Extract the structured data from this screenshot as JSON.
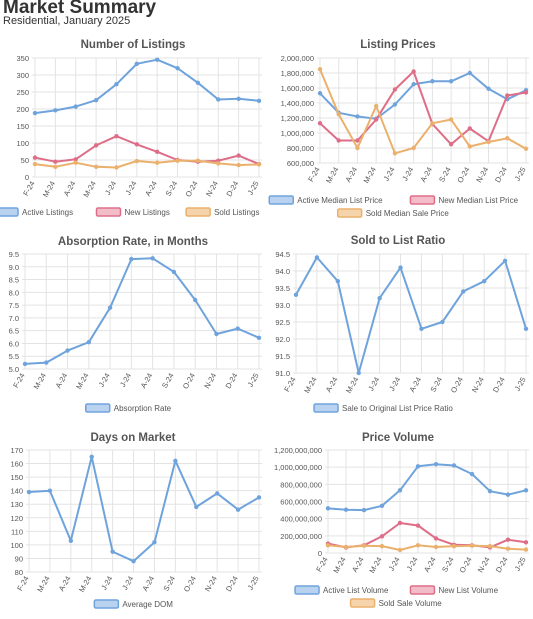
{
  "page": {
    "title": "Market Summary",
    "subtitle": "Residential, January 2025"
  },
  "colors": {
    "blue": "#6fa3dc",
    "blue_fill": "#b8d2f0",
    "pink": "#de6e88",
    "pink_fill": "#f3bcc9",
    "orange": "#ebb06c",
    "orange_fill": "#f5d4ab",
    "grid": "#e3e3e3",
    "axis_text": "#555555",
    "title_text": "#555555"
  },
  "chart_data": [
    {
      "type": "line",
      "title": "Number of Listings",
      "categories": [
        "F-24",
        "M-24",
        "A-24",
        "M-24",
        "J-24",
        "J-24",
        "A-24",
        "S-24",
        "O-24",
        "N-24",
        "D-24",
        "J-25"
      ],
      "ylim": [
        0,
        350
      ],
      "ytick_labels": [
        "0",
        "50",
        "100",
        "150",
        "200",
        "250",
        "300",
        "350"
      ],
      "grid": true,
      "legend_position": "bottom",
      "series": [
        {
          "name": "Active Listings",
          "color": "#6fa3dc",
          "fill": "#b8d2f0",
          "values": [
            188,
            196,
            207,
            226,
            273,
            333,
            345,
            320,
            277,
            228,
            230,
            224
          ]
        },
        {
          "name": "New Listings",
          "color": "#de6e88",
          "fill": "#f3bcc9",
          "values": [
            57,
            45,
            52,
            93,
            120,
            96,
            74,
            50,
            45,
            48,
            63,
            38
          ]
        },
        {
          "name": "Sold Listings",
          "color": "#ebb06c",
          "fill": "#f5d4ab",
          "values": [
            38,
            30,
            42,
            30,
            28,
            47,
            42,
            48,
            48,
            40,
            35,
            37
          ]
        }
      ]
    },
    {
      "type": "line",
      "title": "Listing Prices",
      "categories": [
        "F-24",
        "M-24",
        "A-24",
        "M-24",
        "J-24",
        "J-24",
        "A-24",
        "S-24",
        "O-24",
        "N-24",
        "D-24",
        "J-25"
      ],
      "ylim": [
        600000,
        2000000
      ],
      "ytick_labels": [
        "600,000",
        "800,000",
        "1,000,000",
        "1,200,000",
        "1,400,000",
        "1,600,000",
        "1,800,000",
        "2,000,000"
      ],
      "grid": true,
      "legend_position": "bottom",
      "series": [
        {
          "name": "Active Median List Price",
          "color": "#6fa3dc",
          "fill": "#b8d2f0",
          "values": [
            1530000,
            1270000,
            1220000,
            1190000,
            1380000,
            1650000,
            1690000,
            1690000,
            1800000,
            1590000,
            1450000,
            1570000
          ]
        },
        {
          "name": "New Median List Price",
          "color": "#de6e88",
          "fill": "#f3bcc9",
          "values": [
            1130000,
            900000,
            900000,
            1180000,
            1580000,
            1820000,
            1120000,
            850000,
            1060000,
            890000,
            1500000,
            1540000
          ]
        },
        {
          "name": "Sold Median Sale Price",
          "color": "#ebb06c",
          "fill": "#f5d4ab",
          "values": [
            1850000,
            1250000,
            800000,
            1360000,
            730000,
            800000,
            1130000,
            1180000,
            820000,
            880000,
            930000,
            790000
          ]
        }
      ]
    },
    {
      "type": "line",
      "title": "Absorption Rate, in Months",
      "categories": [
        "F-24",
        "M-24",
        "A-24",
        "M-24",
        "J-24",
        "J-24",
        "A-24",
        "S-24",
        "O-24",
        "N-24",
        "D-24",
        "J-25"
      ],
      "ylim": [
        5.0,
        9.5
      ],
      "ytick_labels": [
        "5.0",
        "5.5",
        "6.0",
        "6.5",
        "7.0",
        "7.5",
        "8.0",
        "8.5",
        "9.0",
        "9.5"
      ],
      "grid": true,
      "legend_position": "bottom",
      "series": [
        {
          "name": "Absorption Rate",
          "color": "#6fa3dc",
          "fill": "#b8d2f0",
          "values": [
            5.2,
            5.25,
            5.72,
            6.05,
            7.4,
            9.3,
            9.33,
            8.8,
            7.7,
            6.37,
            6.58,
            6.22
          ]
        }
      ]
    },
    {
      "type": "line",
      "title": "Sold to List Ratio",
      "categories": [
        "F-24",
        "M-24",
        "A-24",
        "M-24",
        "J-24",
        "J-24",
        "A-24",
        "S-24",
        "O-24",
        "N-24",
        "D-24",
        "J-25"
      ],
      "ylim": [
        91.0,
        94.5
      ],
      "ytick_labels": [
        "91.0",
        "91.5",
        "92.0",
        "92.5",
        "93.0",
        "93.5",
        "94.0",
        "94.5"
      ],
      "grid": true,
      "legend_position": "bottom",
      "series": [
        {
          "name": "Sale to Original List Price Ratio",
          "color": "#6fa3dc",
          "fill": "#b8d2f0",
          "values": [
            93.3,
            94.4,
            93.7,
            91.0,
            93.2,
            94.1,
            92.3,
            92.5,
            93.4,
            93.7,
            94.3,
            92.3
          ]
        }
      ]
    },
    {
      "type": "line",
      "title": "Days on Market",
      "categories": [
        "F-24",
        "M-24",
        "A-24",
        "M-24",
        "J-24",
        "J-24",
        "A-24",
        "S-24",
        "O-24",
        "N-24",
        "D-24",
        "J-25"
      ],
      "ylim": [
        80,
        170
      ],
      "ytick_labels": [
        "80",
        "90",
        "100",
        "110",
        "120",
        "130",
        "140",
        "150",
        "160",
        "170"
      ],
      "grid": true,
      "legend_position": "bottom",
      "series": [
        {
          "name": "Average DOM",
          "color": "#6fa3dc",
          "fill": "#b8d2f0",
          "values": [
            139,
            140,
            103,
            165,
            95,
            88,
            102,
            162,
            128,
            138,
            126,
            135
          ]
        }
      ]
    },
    {
      "type": "line",
      "title": "Price Volume",
      "categories": [
        "F-24",
        "M-24",
        "A-24",
        "M-24",
        "J-24",
        "J-24",
        "A-24",
        "S-24",
        "O-24",
        "N-24",
        "D-24",
        "J-25"
      ],
      "ylim": [
        0,
        1200000000
      ],
      "ytick_labels": [
        "0",
        "200,000,000",
        "400,000,000",
        "600,000,000",
        "800,000,000",
        "1,000,000,000",
        "1,200,000,000"
      ],
      "grid": true,
      "legend_position": "bottom",
      "series": [
        {
          "name": "Active List Volume",
          "color": "#6fa3dc",
          "fill": "#b8d2f0",
          "values": [
            520000000,
            505000000,
            500000000,
            550000000,
            730000000,
            1010000000,
            1035000000,
            1020000000,
            920000000,
            720000000,
            680000000,
            730000000
          ]
        },
        {
          "name": "New List Volume",
          "color": "#de6e88",
          "fill": "#f3bcc9",
          "values": [
            110000000,
            65000000,
            90000000,
            195000000,
            350000000,
            320000000,
            170000000,
            95000000,
            90000000,
            65000000,
            155000000,
            125000000
          ]
        },
        {
          "name": "Sold Sale Volume",
          "color": "#ebb06c",
          "fill": "#f5d4ab",
          "values": [
            90000000,
            70000000,
            85000000,
            80000000,
            35000000,
            90000000,
            70000000,
            80000000,
            85000000,
            80000000,
            50000000,
            40000000
          ]
        }
      ]
    }
  ]
}
